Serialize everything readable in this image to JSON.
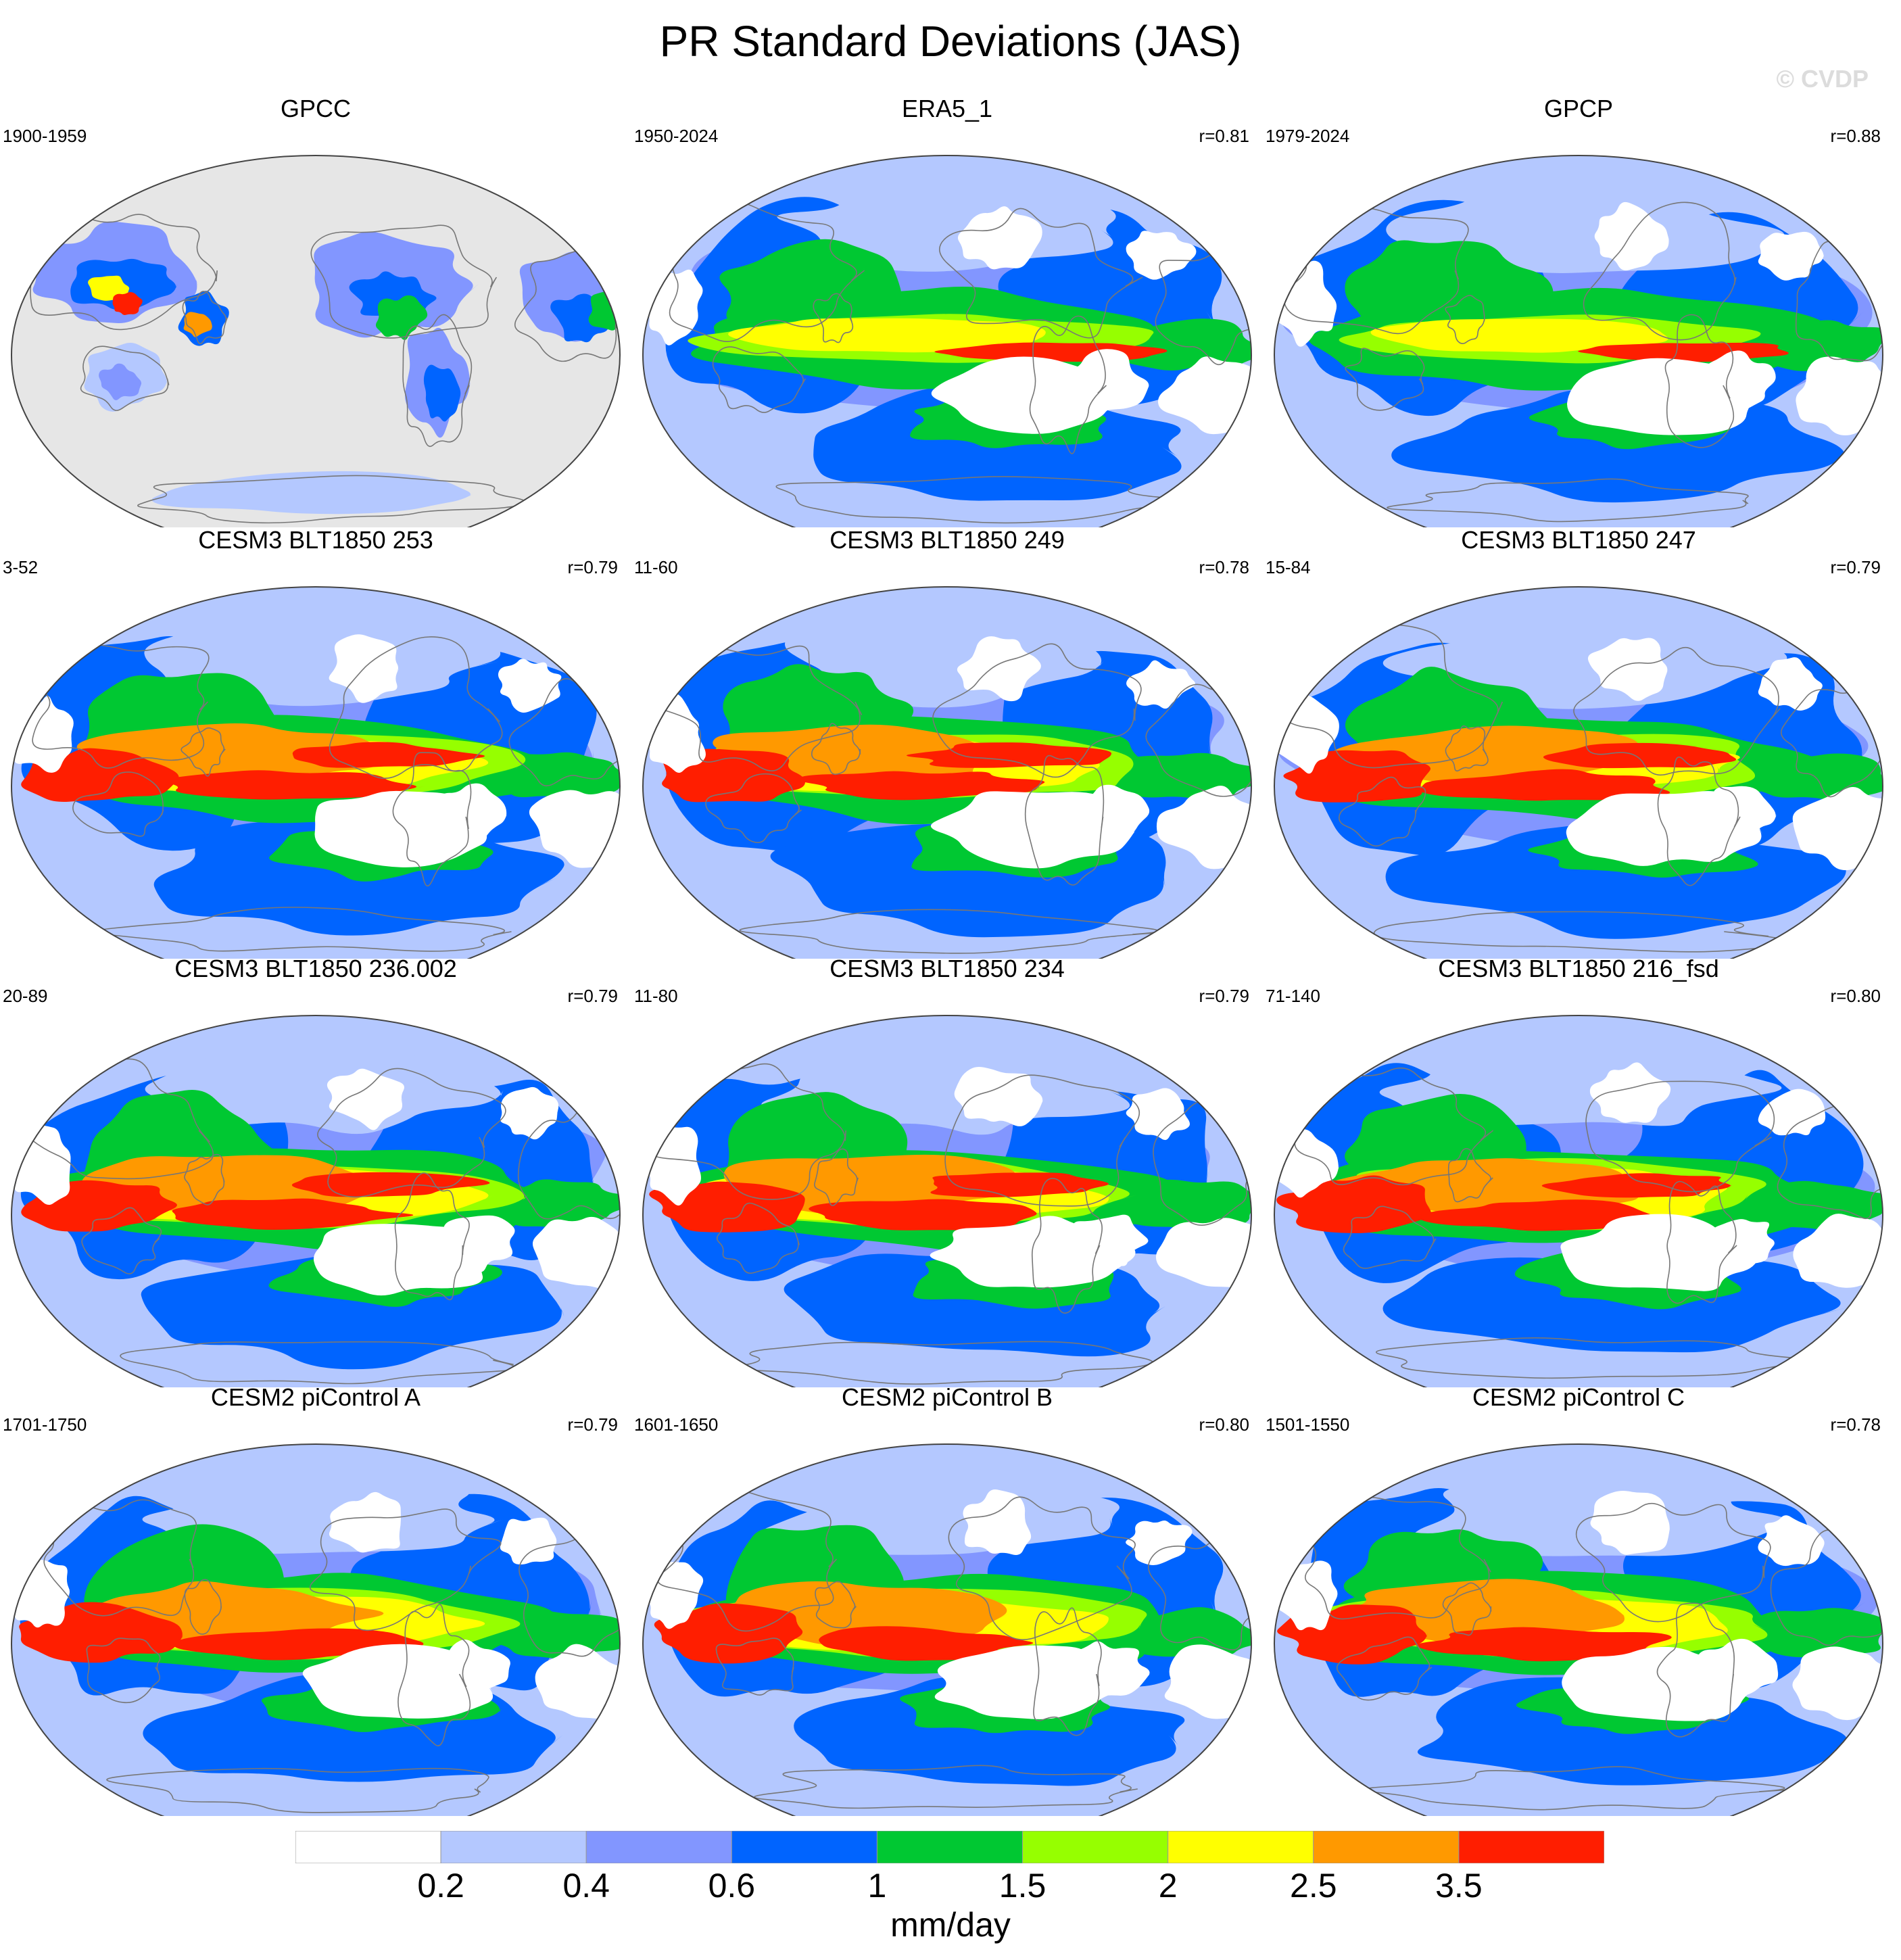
{
  "title": "PR Standard Deviations (JAS)",
  "watermark": "© CVDP",
  "palette": [
    "#ffffff",
    "#b4c8ff",
    "#8296ff",
    "#0064ff",
    "#00c832",
    "#96ff00",
    "#ffff00",
    "#ff9900",
    "#ff1e00"
  ],
  "colorbar": {
    "labels": [
      "0.2",
      "0.4",
      "0.6",
      "1",
      "1.5",
      "2",
      "2.5",
      "3.5"
    ],
    "units": "mm/day"
  },
  "panels": [
    {
      "title": "GPCC",
      "years": "1900-1959",
      "r": "",
      "kind": "land"
    },
    {
      "title": "ERA5_1",
      "years": "1950-2024",
      "r": "r=0.81",
      "kind": "obs"
    },
    {
      "title": "GPCP",
      "years": "1979-2024",
      "r": "r=0.88",
      "kind": "obs"
    },
    {
      "title": "CESM3 BLT1850 253",
      "years": "3-52",
      "r": "r=0.79",
      "kind": "model"
    },
    {
      "title": "CESM3 BLT1850 249",
      "years": "11-60",
      "r": "r=0.78",
      "kind": "model"
    },
    {
      "title": "CESM3 BLT1850 247",
      "years": "15-84",
      "r": "r=0.79",
      "kind": "model"
    },
    {
      "title": "CESM3 BLT1850 236.002",
      "years": "20-89",
      "r": "r=0.79",
      "kind": "model"
    },
    {
      "title": "CESM3 BLT1850 234",
      "years": "11-80",
      "r": "r=0.79",
      "kind": "model"
    },
    {
      "title": "CESM3 BLT1850 216_fsd",
      "years": "71-140",
      "r": "r=0.80",
      "kind": "model"
    },
    {
      "title": "CESM2 piControl A",
      "years": "1701-1750",
      "r": "r=0.79",
      "kind": "model2"
    },
    {
      "title": "CESM2 piControl B",
      "years": "1601-1650",
      "r": "r=0.80",
      "kind": "model2"
    },
    {
      "title": "CESM2 piControl C",
      "years": "1501-1550",
      "r": "r=0.78",
      "kind": "model2"
    }
  ]
}
